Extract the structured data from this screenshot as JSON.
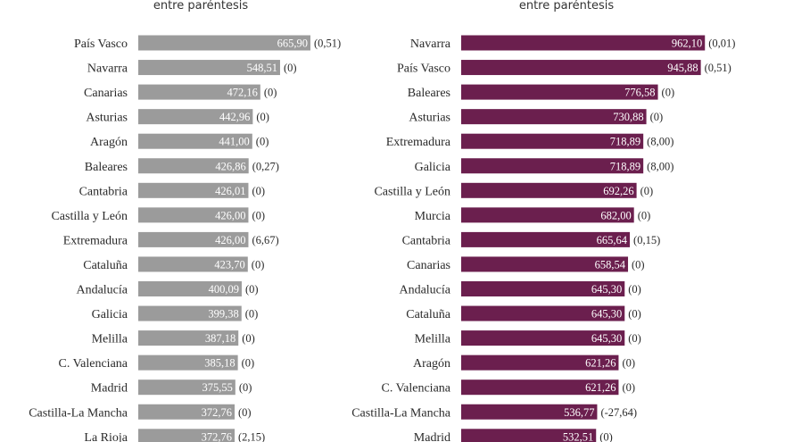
{
  "chart_data": [
    {
      "type": "bar",
      "orientation": "horizontal",
      "subtitle": "entre paréntesis",
      "color": "#9b9b9b",
      "xlim": [
        0,
        1000
      ],
      "categories": [
        "País Vasco",
        "Navarra",
        "Canarias",
        "Asturias",
        "Aragón",
        "Baleares",
        "Cantabria",
        "Castilla y León",
        "Extremadura",
        "Cataluña",
        "Andalucía",
        "Galicia",
        "Melilla",
        "C. Valenciana",
        "Madrid",
        "Castilla-La Mancha",
        "La Rioja"
      ],
      "values": [
        665.9,
        548.51,
        472.16,
        442.96,
        441.0,
        426.86,
        426.01,
        426.0,
        426.0,
        423.7,
        400.09,
        399.38,
        387.18,
        385.18,
        375.55,
        372.76,
        372.76
      ],
      "value_labels": [
        "665,90",
        "548,51",
        "472,16",
        "442,96",
        "441,00",
        "426,86",
        "426,01",
        "426,00",
        "426,00",
        "423,70",
        "400,09",
        "399,38",
        "387,18",
        "385,18",
        "375,55",
        "372,76",
        "372,76"
      ],
      "changes": [
        "(0,51)",
        "(0)",
        "(0)",
        "(0)",
        "(0)",
        "(0,27)",
        "(0)",
        "(0)",
        "(6,67)",
        "(0)",
        "(0)",
        "(0)",
        "(0)",
        "(0)",
        "(0)",
        "(0)",
        "(2,15)"
      ]
    },
    {
      "type": "bar",
      "orientation": "horizontal",
      "subtitle": "entre paréntesis",
      "color": "#6b1f4e",
      "xlim": [
        0,
        1000
      ],
      "categories": [
        "Navarra",
        "País Vasco",
        "Baleares",
        "Asturias",
        "Extremadura",
        "Galicia",
        "Castilla y León",
        "Murcia",
        "Cantabria",
        "Canarias",
        "Andalucía",
        "Cataluña",
        "Melilla",
        "Aragón",
        "C. Valenciana",
        "Castilla-La Mancha",
        "Madrid"
      ],
      "values": [
        962.1,
        945.88,
        776.58,
        730.88,
        718.89,
        718.89,
        692.26,
        682.0,
        665.64,
        658.54,
        645.3,
        645.3,
        645.3,
        621.26,
        621.26,
        536.77,
        532.51
      ],
      "value_labels": [
        "962,10",
        "945,88",
        "776,58",
        "730,88",
        "718,89",
        "718,89",
        "692,26",
        "682,00",
        "665,64",
        "658,54",
        "645,30",
        "645,30",
        "645,30",
        "621,26",
        "621,26",
        "536,77",
        "532,51"
      ],
      "changes": [
        "(0,01)",
        "(0,51)",
        "(0)",
        "(0)",
        "(8,00)",
        "(8,00)",
        "(0)",
        "(0)",
        "(0,15)",
        "(0)",
        "(0)",
        "(0)",
        "(0)",
        "(0)",
        "(0)",
        "(-27,64)",
        "(0)"
      ]
    }
  ]
}
